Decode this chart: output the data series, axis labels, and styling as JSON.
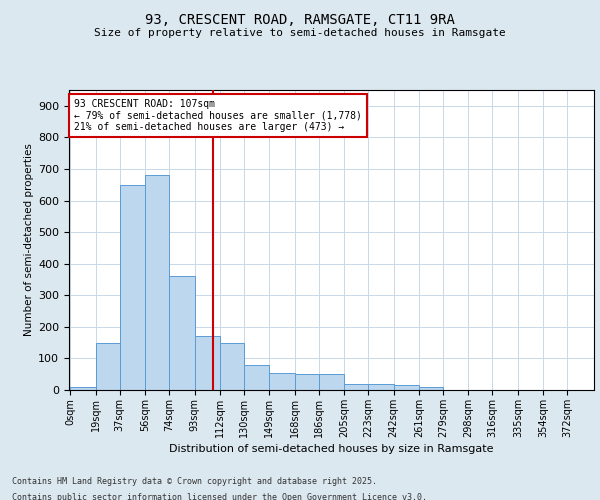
{
  "title1": "93, CRESCENT ROAD, RAMSGATE, CT11 9RA",
  "title2": "Size of property relative to semi-detached houses in Ramsgate",
  "xlabel": "Distribution of semi-detached houses by size in Ramsgate",
  "ylabel": "Number of semi-detached properties",
  "annotation_line1": "93 CRESCENT ROAD: 107sqm",
  "annotation_line2": "← 79% of semi-detached houses are smaller (1,778)",
  "annotation_line3": "21% of semi-detached houses are larger (473) →",
  "property_size": 107,
  "bar_labels": [
    "0sqm",
    "19sqm",
    "37sqm",
    "56sqm",
    "74sqm",
    "93sqm",
    "112sqm",
    "130sqm",
    "149sqm",
    "168sqm",
    "186sqm",
    "205sqm",
    "223sqm",
    "242sqm",
    "261sqm",
    "279sqm",
    "298sqm",
    "316sqm",
    "335sqm",
    "354sqm",
    "372sqm"
  ],
  "bar_values": [
    10,
    150,
    650,
    680,
    360,
    170,
    150,
    80,
    55,
    50,
    50,
    20,
    20,
    15,
    10,
    0,
    0,
    0,
    0,
    0,
    0
  ],
  "bin_edges": [
    0,
    19,
    37,
    56,
    74,
    93,
    112,
    130,
    149,
    168,
    186,
    205,
    223,
    242,
    261,
    279,
    298,
    316,
    335,
    354,
    372
  ],
  "bar_color": "#bdd7ee",
  "bar_edge_color": "#5b9bd5",
  "vline_color": "#cc0000",
  "vline_x": 107,
  "annotation_box_color": "#cc0000",
  "annotation_box_facecolor": "white",
  "grid_color": "#c8d8e8",
  "bg_color": "#dce8f0",
  "plot_bg": "white",
  "ylim": [
    0,
    950
  ],
  "yticks": [
    0,
    100,
    200,
    300,
    400,
    500,
    600,
    700,
    800,
    900
  ],
  "footnote1": "Contains HM Land Registry data © Crown copyright and database right 2025.",
  "footnote2": "Contains public sector information licensed under the Open Government Licence v3.0."
}
